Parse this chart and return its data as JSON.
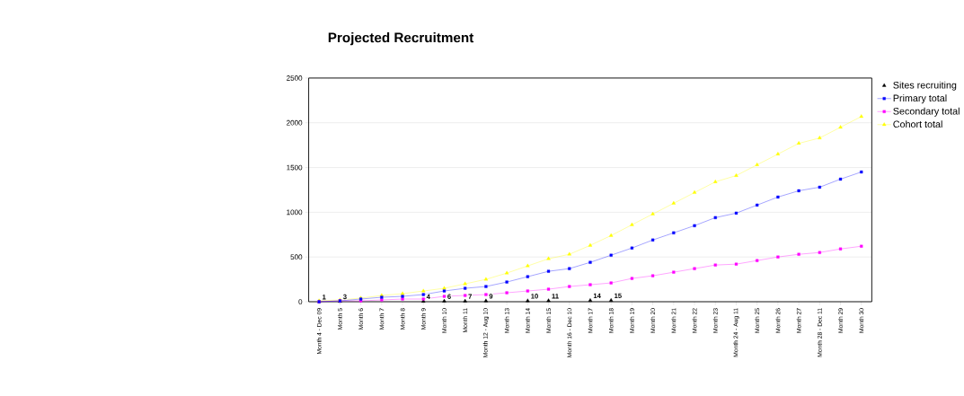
{
  "chart_data": {
    "type": "line",
    "title": "Projected Recruitment",
    "categories": [
      "Month 4 - Dec 09",
      "Month 5",
      "Month 6",
      "Month 7",
      "Month 8",
      "Month 9",
      "Month 10",
      "Month 11",
      "Month 12 - Aug 10",
      "Month 13",
      "Month 14",
      "Month 15",
      "Month 16 - Dec 10",
      "Month 17",
      "Month 18",
      "Month 19",
      "Month 20",
      "Month 21",
      "Month 22",
      "Month 23",
      "Month 24 - Aug 11",
      "Month 25",
      "Month 26",
      "Month 27",
      "Month 28 - Dec 11",
      "Month 29",
      "Month 30"
    ],
    "series": [
      {
        "name": "Sites recruiting",
        "type": "scatter",
        "marker": "triangle",
        "color": "#000000",
        "values": [
          1,
          3,
          null,
          null,
          null,
          4,
          6,
          7,
          9,
          null,
          10,
          11,
          null,
          14,
          15,
          null,
          null,
          null,
          null,
          null,
          null,
          null,
          null,
          null,
          null,
          null,
          null
        ],
        "value_labels": [
          "1",
          "3",
          null,
          null,
          null,
          "4",
          "6",
          "7",
          "9",
          null,
          "10",
          "11",
          null,
          "14",
          "15",
          null,
          null,
          null,
          null,
          null,
          null,
          null,
          null,
          null,
          null,
          null,
          null
        ]
      },
      {
        "name": "Primary total",
        "marker": "square",
        "color": "#0000ff",
        "values": [
          0,
          10,
          30,
          50,
          60,
          80,
          120,
          150,
          170,
          220,
          280,
          340,
          370,
          440,
          520,
          600,
          690,
          770,
          850,
          940,
          990,
          1080,
          1170,
          1240,
          1280,
          1370,
          1450
        ]
      },
      {
        "name": "Secondary total",
        "marker": "square",
        "color": "#ff00ff",
        "values": [
          0,
          10,
          10,
          20,
          30,
          30,
          60,
          70,
          80,
          100,
          120,
          140,
          170,
          190,
          210,
          260,
          290,
          330,
          370,
          410,
          420,
          460,
          500,
          530,
          550,
          590,
          620
        ]
      },
      {
        "name": "Cohort total",
        "marker": "triangle",
        "color": "#ffff00",
        "values": [
          10,
          20,
          40,
          70,
          90,
          120,
          150,
          200,
          250,
          320,
          400,
          480,
          530,
          630,
          740,
          860,
          980,
          1100,
          1220,
          1340,
          1410,
          1530,
          1650,
          1770,
          1830,
          1950,
          2070
        ]
      }
    ],
    "ylim": [
      0,
      2500
    ],
    "yticks": [
      0,
      500,
      1000,
      1500,
      2000,
      2500
    ],
    "grid": "y",
    "legend": "right",
    "line_style": "solid"
  }
}
